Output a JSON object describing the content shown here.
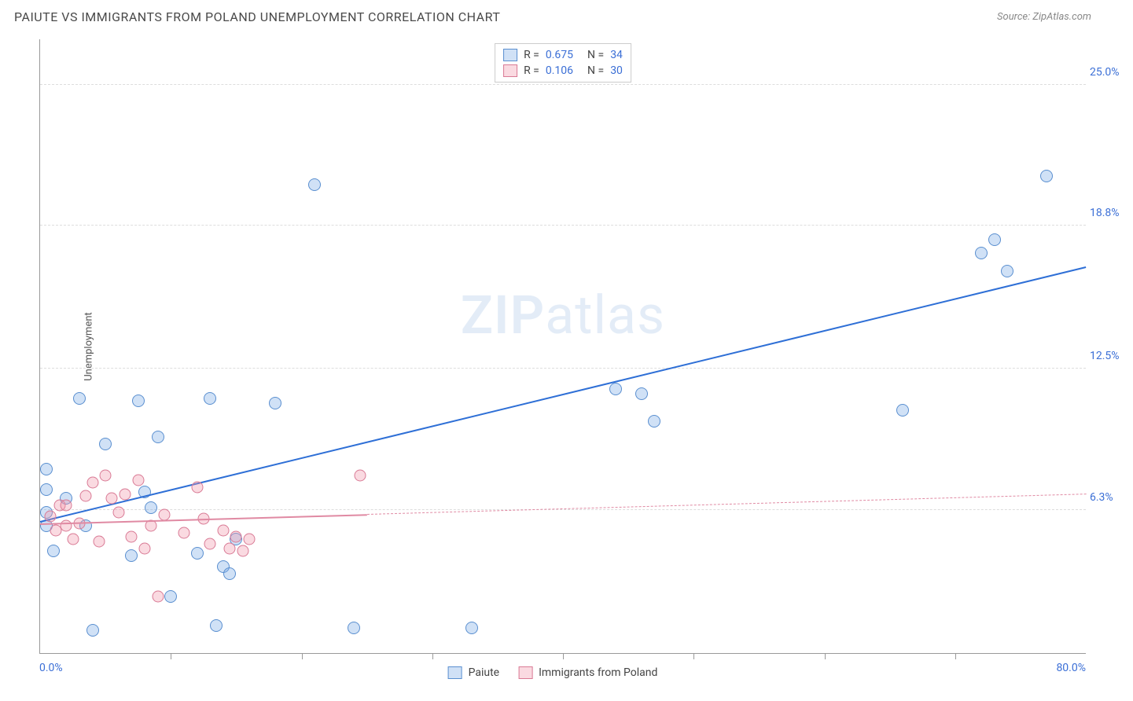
{
  "header": {
    "title": "PAIUTE VS IMMIGRANTS FROM POLAND UNEMPLOYMENT CORRELATION CHART",
    "source": "Source: ZipAtlas.com"
  },
  "axes": {
    "y_label": "Unemployment",
    "x_min_label": "0.0%",
    "x_max_label": "80.0%",
    "xlim": [
      0,
      80
    ],
    "ylim": [
      0,
      27
    ],
    "y_ticks": [
      {
        "value": 6.3,
        "label": "6.3%"
      },
      {
        "value": 12.5,
        "label": "12.5%"
      },
      {
        "value": 18.8,
        "label": "18.8%"
      },
      {
        "value": 25.0,
        "label": "25.0%"
      }
    ],
    "x_tick_positions": [
      10,
      20,
      30,
      40,
      50,
      60,
      70
    ]
  },
  "watermark": {
    "bold": "ZIP",
    "rest": "atlas"
  },
  "series": [
    {
      "name": "Paiute",
      "fill": "rgba(120,170,230,0.35)",
      "stroke": "#5a8fd0",
      "marker_size": 16,
      "trend": {
        "x1": 0,
        "y1": 5.8,
        "x2": 80,
        "y2": 17.0,
        "color": "#2e6fd6",
        "solid_until_x": 80
      },
      "stats": {
        "r": "0.675",
        "n": "34"
      },
      "points": [
        [
          0.5,
          7.2
        ],
        [
          0.5,
          6.2
        ],
        [
          0.5,
          5.6
        ],
        [
          0.5,
          8.1
        ],
        [
          1.0,
          4.5
        ],
        [
          2.0,
          6.8
        ],
        [
          3.0,
          11.2
        ],
        [
          3.5,
          5.6
        ],
        [
          4.0,
          1.0
        ],
        [
          5.0,
          9.2
        ],
        [
          7.0,
          4.3
        ],
        [
          7.5,
          11.1
        ],
        [
          8.0,
          7.1
        ],
        [
          8.5,
          6.4
        ],
        [
          9.0,
          9.5
        ],
        [
          10.0,
          2.5
        ],
        [
          12.0,
          4.4
        ],
        [
          13.0,
          11.2
        ],
        [
          13.5,
          1.2
        ],
        [
          14.0,
          3.8
        ],
        [
          14.5,
          3.5
        ],
        [
          15.0,
          5.0
        ],
        [
          18.0,
          11.0
        ],
        [
          21.0,
          20.6
        ],
        [
          24.0,
          1.1
        ],
        [
          33.0,
          1.1
        ],
        [
          44.0,
          11.6
        ],
        [
          46.0,
          11.4
        ],
        [
          47.0,
          10.2
        ],
        [
          66.0,
          10.7
        ],
        [
          72.0,
          17.6
        ],
        [
          73.0,
          18.2
        ],
        [
          74.0,
          16.8
        ],
        [
          77.0,
          21.0
        ]
      ]
    },
    {
      "name": "Immigrants from Poland",
      "fill": "rgba(240,150,170,0.35)",
      "stroke": "#d97a95",
      "marker_size": 15,
      "trend": {
        "x1": 0,
        "y1": 5.7,
        "x2": 80,
        "y2": 7.0,
        "color": "#e08aa3",
        "solid_until_x": 25
      },
      "stats": {
        "r": "0.106",
        "n": "30"
      },
      "points": [
        [
          0.8,
          6.0
        ],
        [
          1.2,
          5.4
        ],
        [
          1.5,
          6.5
        ],
        [
          2.0,
          6.5
        ],
        [
          2.0,
          5.6
        ],
        [
          2.5,
          5.0
        ],
        [
          3.0,
          5.7
        ],
        [
          3.5,
          6.9
        ],
        [
          4.0,
          7.5
        ],
        [
          4.5,
          4.9
        ],
        [
          5.0,
          7.8
        ],
        [
          5.5,
          6.8
        ],
        [
          6.0,
          6.2
        ],
        [
          6.5,
          7.0
        ],
        [
          7.0,
          5.1
        ],
        [
          7.5,
          7.6
        ],
        [
          8.0,
          4.6
        ],
        [
          8.5,
          5.6
        ],
        [
          9.0,
          2.5
        ],
        [
          9.5,
          6.1
        ],
        [
          11.0,
          5.3
        ],
        [
          12.0,
          7.3
        ],
        [
          12.5,
          5.9
        ],
        [
          13.0,
          4.8
        ],
        [
          14.0,
          5.4
        ],
        [
          14.5,
          4.6
        ],
        [
          15.0,
          5.1
        ],
        [
          15.5,
          4.5
        ],
        [
          16.0,
          5.0
        ],
        [
          24.5,
          7.8
        ]
      ]
    }
  ],
  "legend": {
    "series1": "Paiute",
    "series2": "Immigrants from Poland"
  },
  "colors": {
    "grid": "#dddddd",
    "axis_text": "#3b6fd6"
  }
}
